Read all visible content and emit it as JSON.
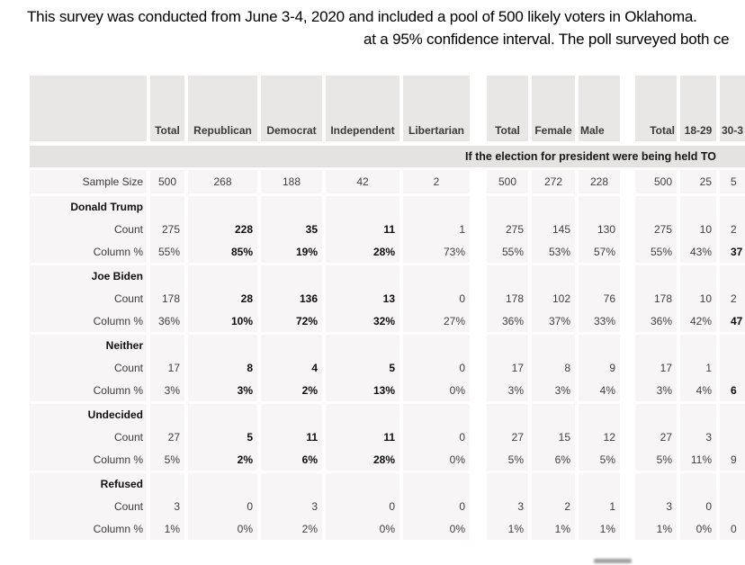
{
  "intro": {
    "line1": "This survey was conducted from June 3-4, 2020 and included a pool of 500 likely voters in Oklahoma.",
    "line2": "at a 95% confidence interval. The poll surveyed both ce"
  },
  "table": {
    "question_banner": "If the election for president were being held TO",
    "header": {
      "sections": [
        {
          "columns": [
            "Total",
            "Republican",
            "Democrat",
            "Independent",
            "Libertarian"
          ]
        },
        {
          "columns": [
            "Total",
            "Female",
            "Male"
          ]
        },
        {
          "columns": [
            "Total",
            "18-29",
            "30-3"
          ]
        }
      ]
    },
    "sample_size": {
      "label": "Sample Size",
      "values": [
        "500",
        "268",
        "188",
        "42",
        "2",
        "500",
        "272",
        "228",
        "500",
        "25",
        "5"
      ]
    },
    "count_label": "Count",
    "pct_label": "Column %",
    "candidates": [
      {
        "name": "Donald Trump",
        "counts": [
          "275",
          "228",
          "35",
          "11",
          "1",
          "275",
          "145",
          "130",
          "275",
          "10",
          "2"
        ],
        "counts_bold": [
          false,
          true,
          true,
          true,
          false,
          false,
          false,
          false,
          false,
          false,
          false
        ],
        "pcts": [
          "55%",
          "85%",
          "19%",
          "28%",
          "73%",
          "55%",
          "53%",
          "57%",
          "55%",
          "43%",
          "37"
        ],
        "pcts_bold": [
          false,
          true,
          true,
          true,
          false,
          false,
          false,
          false,
          false,
          false,
          true
        ]
      },
      {
        "name": "Joe Biden",
        "counts": [
          "178",
          "28",
          "136",
          "13",
          "0",
          "178",
          "102",
          "76",
          "178",
          "10",
          "2"
        ],
        "counts_bold": [
          false,
          true,
          true,
          true,
          false,
          false,
          false,
          false,
          false,
          false,
          false
        ],
        "pcts": [
          "36%",
          "10%",
          "72%",
          "32%",
          "27%",
          "36%",
          "37%",
          "33%",
          "36%",
          "42%",
          "47"
        ],
        "pcts_bold": [
          false,
          true,
          true,
          true,
          false,
          false,
          false,
          false,
          false,
          false,
          true
        ]
      },
      {
        "name": "Neither",
        "counts": [
          "17",
          "8",
          "4",
          "5",
          "0",
          "17",
          "8",
          "9",
          "17",
          "1",
          ""
        ],
        "counts_bold": [
          false,
          true,
          true,
          true,
          false,
          false,
          false,
          false,
          false,
          false,
          false
        ],
        "pcts": [
          "3%",
          "3%",
          "2%",
          "13%",
          "0%",
          "3%",
          "3%",
          "4%",
          "3%",
          "4%",
          "6"
        ],
        "pcts_bold": [
          false,
          true,
          true,
          true,
          false,
          false,
          false,
          false,
          false,
          false,
          true
        ]
      },
      {
        "name": "Undecided",
        "counts": [
          "27",
          "5",
          "11",
          "11",
          "0",
          "27",
          "15",
          "12",
          "27",
          "3",
          ""
        ],
        "counts_bold": [
          false,
          true,
          true,
          true,
          false,
          false,
          false,
          false,
          false,
          false,
          false
        ],
        "pcts": [
          "5%",
          "2%",
          "6%",
          "28%",
          "0%",
          "5%",
          "6%",
          "5%",
          "5%",
          "11%",
          "9"
        ],
        "pcts_bold": [
          false,
          true,
          true,
          true,
          false,
          false,
          false,
          false,
          false,
          false,
          false
        ]
      },
      {
        "name": "Refused",
        "counts": [
          "3",
          "0",
          "3",
          "0",
          "0",
          "3",
          "2",
          "1",
          "3",
          "0",
          ""
        ],
        "counts_bold": [
          false,
          false,
          false,
          false,
          false,
          false,
          false,
          false,
          false,
          false,
          false
        ],
        "pcts": [
          "1%",
          "0%",
          "2%",
          "0%",
          "0%",
          "1%",
          "1%",
          "1%",
          "1%",
          "0%",
          "0"
        ],
        "pcts_bold": [
          false,
          false,
          false,
          false,
          false,
          false,
          false,
          false,
          false,
          false,
          false
        ]
      }
    ]
  }
}
